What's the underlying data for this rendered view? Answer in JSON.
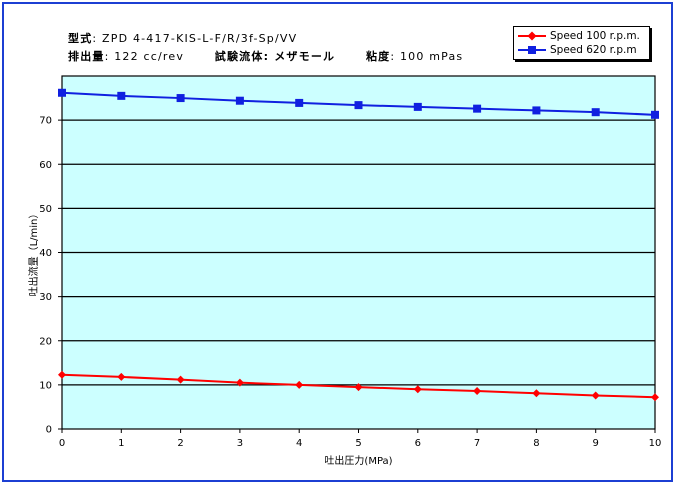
{
  "header": {
    "model_label": "型式",
    "model_value": ": ZPD 4-417-KIS-L-F/R/3f-Sp/VV",
    "displacement_label": "排出量",
    "displacement_value": ": 122 cc/rev",
    "fluid_label": "試験流体",
    "fluid_value": ": メザモール",
    "viscosity_label": "粘度",
    "viscosity_value": ": 100 mPas"
  },
  "chart_data": {
    "type": "line",
    "title": "",
    "xlabel": "吐出圧力(MPa)",
    "ylabel": "吐出流量（L/min）",
    "xlim": [
      0,
      10
    ],
    "ylim": [
      0,
      80
    ],
    "x_ticks": [
      0,
      1,
      2,
      3,
      4,
      5,
      6,
      7,
      8,
      9,
      10
    ],
    "y_ticks": [
      0,
      10,
      20,
      30,
      40,
      50,
      60,
      70
    ],
    "grid": "horizontal",
    "legend_position": "top-right",
    "plot_background": "#ccffff",
    "x": [
      0,
      1,
      2,
      3,
      4,
      5,
      6,
      7,
      8,
      9,
      10
    ],
    "series": [
      {
        "name": "Speed 100 r.p.m.",
        "color": "#ff0000",
        "marker": "diamond",
        "values": [
          12.3,
          11.8,
          11.2,
          10.5,
          10.0,
          9.5,
          9.0,
          8.6,
          8.1,
          7.6,
          7.2
        ]
      },
      {
        "name": "Speed 620 r.p.m",
        "color": "#1020e0",
        "marker": "square",
        "values": [
          76.2,
          75.5,
          75.0,
          74.4,
          73.9,
          73.4,
          73.0,
          72.6,
          72.2,
          71.8,
          71.2
        ]
      }
    ]
  }
}
